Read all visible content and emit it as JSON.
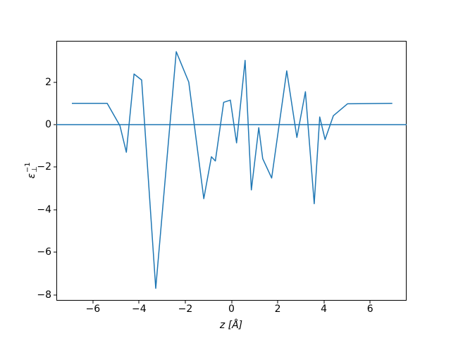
{
  "figure": {
    "background_color": "#ffffff",
    "spine_color": "#000000",
    "accent_color": "#1f77b4"
  },
  "chart_data": {
    "type": "line",
    "title": "",
    "xlabel": "z [Å]",
    "ylabel": "ε⊥⁻¹",
    "ylabel_parts": {
      "base": "ε",
      "sup": "−1",
      "sub": "⊥"
    },
    "xlim": [
      -7.58,
      7.58
    ],
    "ylim": [
      -8.28,
      3.94
    ],
    "xticks": [
      -6,
      -4,
      -2,
      0,
      2,
      4,
      6
    ],
    "xtick_labels": [
      "−6",
      "−4",
      "−2",
      "0",
      "2",
      "4",
      "6"
    ],
    "yticks": [
      -8,
      -6,
      -4,
      -2,
      0,
      2
    ],
    "ytick_labels": [
      "−8",
      "−6",
      "−4",
      "−2",
      "0",
      "2"
    ],
    "grid": false,
    "legend": "none",
    "series": [
      {
        "name": "zero-reference",
        "color": "#1f77b4",
        "x": [
          -7.58,
          7.58
        ],
        "y": [
          0,
          0
        ]
      },
      {
        "name": "inverse-dielectric-profile",
        "color": "#1f77b4",
        "x": [
          -6.91,
          -5.38,
          -4.83,
          -4.55,
          -4.22,
          -3.89,
          -3.28,
          -2.39,
          -1.85,
          -1.2,
          -0.87,
          -0.7,
          -0.34,
          -0.05,
          0.22,
          0.59,
          0.86,
          1.18,
          1.35,
          1.74,
          2.39,
          2.83,
          3.2,
          3.58,
          3.82,
          4.05,
          4.41,
          5.02,
          6.96
        ],
        "y": [
          1.0,
          1.0,
          -0.05,
          -1.3,
          2.38,
          2.1,
          -7.7,
          3.43,
          2.0,
          -3.48,
          -1.51,
          -1.71,
          1.05,
          1.15,
          -0.86,
          3.02,
          -3.07,
          -0.14,
          -1.6,
          -2.51,
          2.53,
          -0.6,
          1.55,
          -3.72,
          0.36,
          -0.7,
          0.42,
          0.98,
          1.0
        ]
      }
    ]
  }
}
